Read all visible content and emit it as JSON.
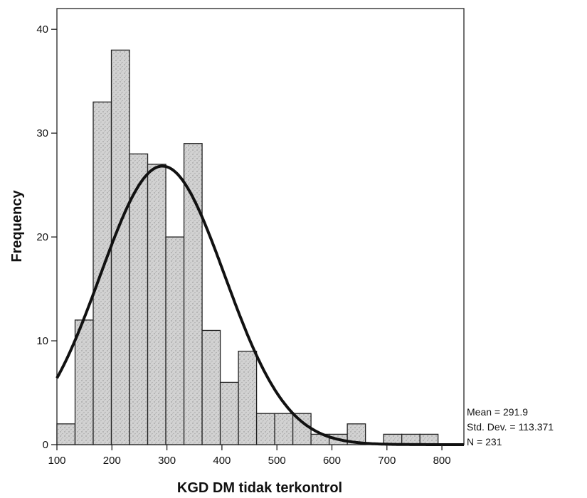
{
  "chart_data": {
    "type": "bar",
    "subtype": "histogram",
    "title": "",
    "xlabel": "KGD DM tidak terkontrol",
    "ylabel": "Frequency",
    "xlim": [
      100,
      840
    ],
    "ylim": [
      0,
      42
    ],
    "x_ticks": [
      100,
      200,
      300,
      400,
      500,
      600,
      700,
      800
    ],
    "y_ticks": [
      0,
      10,
      20,
      30,
      40
    ],
    "bin_width": 33,
    "bins": [
      {
        "start": 100,
        "end": 133,
        "count": 2
      },
      {
        "start": 133,
        "end": 166,
        "count": 12
      },
      {
        "start": 166,
        "end": 199,
        "count": 33
      },
      {
        "start": 199,
        "end": 232,
        "count": 38
      },
      {
        "start": 232,
        "end": 265,
        "count": 28
      },
      {
        "start": 265,
        "end": 298,
        "count": 27
      },
      {
        "start": 298,
        "end": 331,
        "count": 20
      },
      {
        "start": 331,
        "end": 364,
        "count": 29
      },
      {
        "start": 364,
        "end": 397,
        "count": 11
      },
      {
        "start": 397,
        "end": 430,
        "count": 6
      },
      {
        "start": 430,
        "end": 463,
        "count": 9
      },
      {
        "start": 463,
        "end": 496,
        "count": 3
      },
      {
        "start": 496,
        "end": 529,
        "count": 3
      },
      {
        "start": 529,
        "end": 562,
        "count": 3
      },
      {
        "start": 562,
        "end": 595,
        "count": 1
      },
      {
        "start": 595,
        "end": 628,
        "count": 1
      },
      {
        "start": 628,
        "end": 661,
        "count": 2
      },
      {
        "start": 661,
        "end": 694,
        "count": 0
      },
      {
        "start": 694,
        "end": 727,
        "count": 1
      },
      {
        "start": 727,
        "end": 760,
        "count": 1
      },
      {
        "start": 760,
        "end": 793,
        "count": 1
      }
    ],
    "normal_curve": {
      "mean": 291.9,
      "std_dev": 113.371,
      "n": 231
    },
    "grid": false,
    "legend": "none",
    "bar_fill": "#d4d4d4",
    "curve_color": "#111111"
  },
  "stats": {
    "mean_label": "Mean = 291.9",
    "std_label": "Std. Dev. = 113.371",
    "n_label": "N = 231"
  }
}
